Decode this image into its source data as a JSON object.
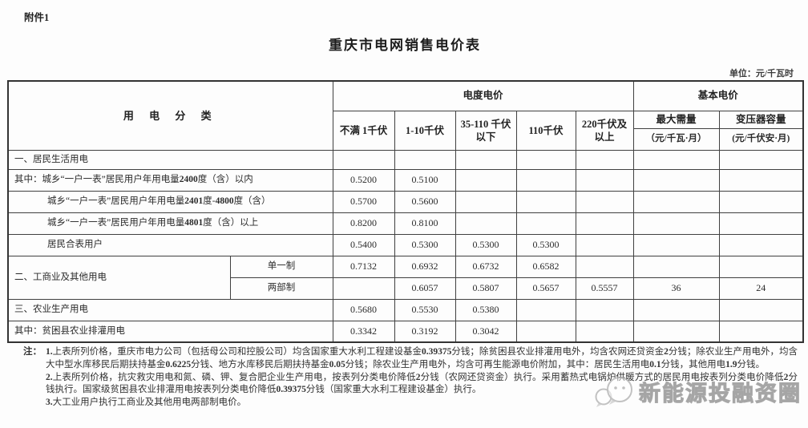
{
  "page": {
    "attachment_label": "附件1",
    "title": "重庆市电网销售电价表",
    "unit_note": "单位：元/千瓦时"
  },
  "table": {
    "category_header": "用 电 分 类",
    "energy_group": "电度电价",
    "basic_group": "基本电价",
    "volt_cols": [
      "不满 1千伏",
      "1-10千伏",
      "35-110 千伏以下",
      "110千伏",
      "220千伏及以上"
    ],
    "basic_col1": "最大需量",
    "basic_col1_unit": "（元/千瓦·月）",
    "basic_col2": "变压器容量",
    "basic_col2_unit": "(元/千伏安·月)",
    "rows": {
      "r1": {
        "label": "一、居民生活用电",
        "v": [
          "",
          "",
          "",
          "",
          "",
          "",
          ""
        ]
      },
      "r2": {
        "label": "其中：城乡“一户一表”居民用户年用电量2400度（含）以内",
        "v": [
          "0.5200",
          "0.5100",
          "",
          "",
          "",
          "",
          ""
        ]
      },
      "r3": {
        "label": "城乡“一户一表”居民用户年用电量2401度-4800度（含）",
        "v": [
          "0.5700",
          "0.5600",
          "",
          "",
          "",
          "",
          ""
        ]
      },
      "r4": {
        "label": "城乡“一户一表”居民用户年用电量4801度（含）以上",
        "v": [
          "0.8200",
          "0.8100",
          "",
          "",
          "",
          "",
          ""
        ]
      },
      "r5": {
        "label": "居民合表用户",
        "v": [
          "0.5400",
          "0.5300",
          "0.5300",
          "0.5300",
          "",
          "",
          ""
        ]
      },
      "r6": {
        "label": "二、工商业及其他用电",
        "sub": "单一制",
        "v": [
          "0.7132",
          "0.6932",
          "0.6732",
          "0.6582",
          "",
          "",
          ""
        ]
      },
      "r7": {
        "sub": "两部制",
        "v": [
          "",
          "0.6057",
          "0.5807",
          "0.5657",
          "0.5557",
          "36",
          "24"
        ]
      },
      "r8": {
        "label": "三、农业生产用电",
        "v": [
          "0.5680",
          "0.5530",
          "0.5380",
          "",
          "",
          "",
          ""
        ]
      },
      "r9": {
        "label": "其中：贫困县农业排灌用电",
        "v": [
          "0.3342",
          "0.3192",
          "0.3042",
          "",
          "",
          "",
          ""
        ]
      }
    }
  },
  "notes": {
    "label": "注：",
    "items": [
      "1.上表所列价格，重庆市电力公司（包括母公司和控股公司）均含国家重大水利工程建设基金0.39375分钱；除贫困县农业排灌用电外，均含农网还贷资金2分钱；除农业生产用电外，均含大中型水库移民后期扶持基金0.6225分钱、地方水库移民后期扶持基金0.05分钱；除农业生产用电外，均含可再生能源电价附加，其中：居民生活用电0.1分钱，其他用电1.9分钱。",
      "2.上表所列价格，抗灾救灾用电和氮、磷、钾、复合肥企业生产用电，按表列分类电价降低2分钱（农网还贷资金）执行。采用蓄热式电锅炉供暖方式的居民用电按表列分类电价降低2分钱执行。国家级贫困县农业排灌用电按表列分类电价降低0.39375分钱（国家重大水利工程建设基金）执行。",
      "3.大工业用户执行工商业及其他用电两部制电价。"
    ]
  },
  "watermark": {
    "text": "新能源投融资圈"
  }
}
